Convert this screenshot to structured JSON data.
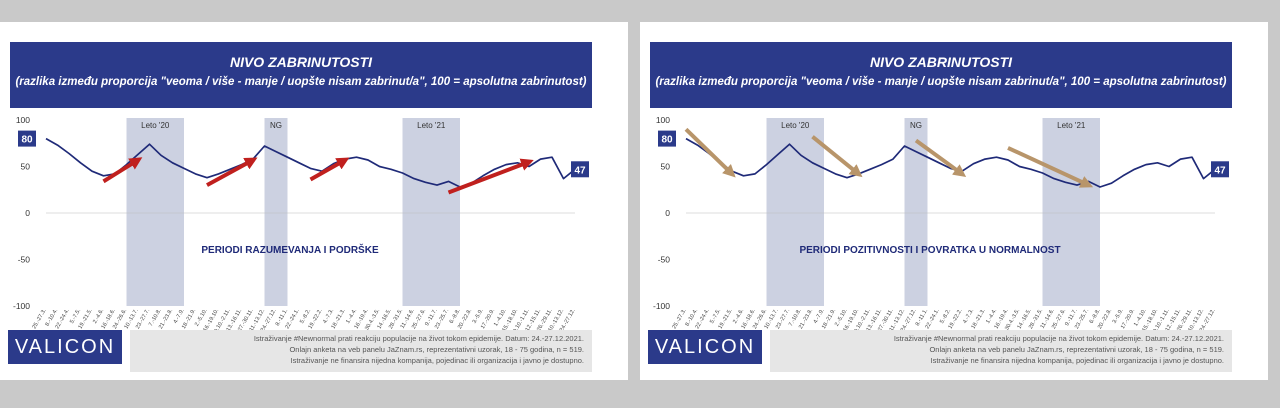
{
  "panels": [
    {
      "title": "NIVO ZABRINUTOSTI",
      "subtitle": "(razlika između proporcija \"veoma / više - manje / uopšte nisam zabrinut/a\", 100 = apsolutna zabrinutost)",
      "annotation": "PERIODI RAZUMEVANJA I PODRŠKE",
      "logo": "VALICON",
      "note": [
        "Istraživanje #Newnormal prati reakciju populacije na život tokom epidemije. Datum: 24.-27.12.2021.",
        "Onlajn anketa na veb panelu JaZnam.rs, reprezentativni uzorak, 18 - 75 godina, n = 519.",
        "Istraživanje ne finansira nijedna kompanija, pojedinac ili organizacija i javno je dostupno."
      ],
      "arrow_color": "#c0201e"
    },
    {
      "title": "NIVO ZABRINUTOSTI",
      "subtitle": "(razlika između proporcija \"veoma / više - manje / uopšte nisam zabrinut/a\", 100 = apsolutna zabrinutost)",
      "annotation": "PERIODI POZITIVNOSTI I POVRATKA U NORMALNOST",
      "logo": "VALICON",
      "note": [
        "Istraživanje #Newnormal prati reakciju populacije na život tokom epidemije. Datum: 24.-27.12.2021.",
        "Onlajn anketa na veb panelu JaZnam.rs, reprezentativni uzorak, 18 - 75 godina, n = 519.",
        "Istraživanje ne finansira nijedna kompanija, pojedinac ili organizacija i javno je dostupno."
      ],
      "arrow_color": "#b8956a"
    }
  ],
  "chart_data": {
    "type": "line",
    "ylim": [
      -100,
      100
    ],
    "yticks": [
      "100",
      "50",
      "0",
      "-50",
      "-100"
    ],
    "x": [
      "25.-27.3.",
      "8.-10.4.",
      "22.-24.4.",
      "5.-7.5.",
      "19.-21.5.",
      "2.-4.6.",
      "16.-18.6.",
      "24.-26.6.",
      "10.-13.7.",
      "23.-27.7.",
      "7.-10.8.",
      "21.-23.8.",
      "4.-7.9.",
      "18.-21.9.",
      "2.-5.10.",
      "16.-19.10.",
      "30.10.-2.11.",
      "13.-16.11.",
      "27.-30.11.",
      "11.-13.12.",
      "24.-27.12.",
      "8.-11.1.",
      "22.-24.1.",
      "5.-8.2.",
      "19.-22.2.",
      "4.-7.3.",
      "18.-21.3.",
      "1.-4.4.",
      "16.-19.4.",
      "30.4.-3.5.",
      "14.-16.5.",
      "28.-31.5.",
      "11.-14.6.",
      "25.-27.6.",
      "9.-11.7.",
      "23.-25.7.",
      "6.-8.8.",
      "20.-22.8.",
      "3.-5.9.",
      "17.-20.9.",
      "1.-4.10.",
      "15.-18.10.",
      "29.10.-1.11.",
      "12.-15.11.",
      "26.-29.11.",
      "10.-13.12.",
      "24.-27.12."
    ],
    "values": [
      80,
      73,
      64,
      54,
      45,
      40,
      42,
      52,
      63,
      74,
      62,
      54,
      48,
      42,
      38,
      42,
      47,
      52,
      58,
      72,
      66,
      60,
      54,
      48,
      45,
      53,
      58,
      60,
      57,
      50,
      47,
      43,
      37,
      33,
      30,
      34,
      28,
      32,
      40,
      47,
      52,
      54,
      50,
      58,
      60,
      37,
      47
    ],
    "labels": {
      "first": "80",
      "last": "47"
    },
    "bands": [
      {
        "label": "Leto '20",
        "from": 7,
        "to": 12
      },
      {
        "label": "NG",
        "from": 19,
        "to": 21
      },
      {
        "label": "Leto '21",
        "from": 31,
        "to": 36
      }
    ],
    "arrows_left": [
      [
        5,
        34,
        8,
        57
      ],
      [
        14,
        30,
        18,
        57
      ],
      [
        23,
        36,
        26,
        57
      ],
      [
        35,
        22,
        42,
        55
      ]
    ],
    "arrows_right": [
      [
        0,
        90,
        4,
        42
      ],
      [
        11,
        82,
        15,
        42
      ],
      [
        20,
        78,
        24,
        42
      ],
      [
        28,
        70,
        35,
        30
      ]
    ]
  }
}
